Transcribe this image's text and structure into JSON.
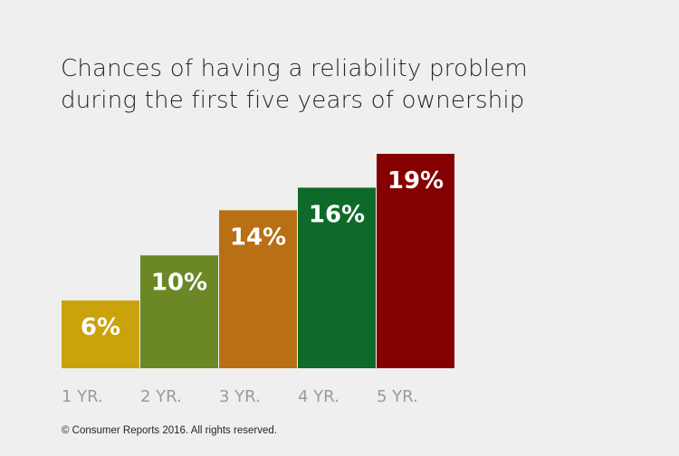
{
  "chart_data": {
    "type": "bar",
    "title_lines": [
      "Chances of having a reliability problem",
      "during the first five years of ownership"
    ],
    "categories": [
      "1 YR.",
      "2 YR.",
      "3 YR.",
      "4 YR.",
      "5 YR."
    ],
    "values": [
      6,
      10,
      14,
      16,
      19
    ],
    "value_labels": [
      "6%",
      "10%",
      "14%",
      "16%",
      "19%"
    ],
    "colors": [
      "#c9a20c",
      "#6b8726",
      "#b96f14",
      "#0e6a2a",
      "#850000"
    ],
    "xlabel": "",
    "ylabel": "",
    "ylim": [
      0,
      19
    ],
    "grid": false
  },
  "footer": {
    "copyright": "© Consumer Reports 2016. All rights reserved."
  }
}
